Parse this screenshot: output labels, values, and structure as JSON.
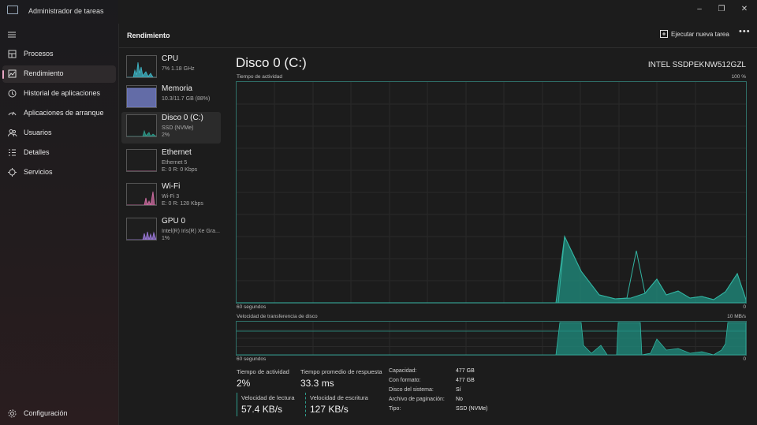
{
  "app": {
    "title": "Administrador de tareas"
  },
  "window": {
    "minimize": "–",
    "restore": "❐",
    "close": "✕"
  },
  "nav": {
    "menu_icon": "hamburger-icon",
    "items": [
      {
        "label": "Procesos",
        "icon": "processes-icon"
      },
      {
        "label": "Rendimiento",
        "icon": "performance-icon",
        "active": true
      },
      {
        "label": "Historial de aplicaciones",
        "icon": "history-icon"
      },
      {
        "label": "Aplicaciones de arranque",
        "icon": "startup-icon"
      },
      {
        "label": "Usuarios",
        "icon": "users-icon"
      },
      {
        "label": "Detalles",
        "icon": "details-icon"
      },
      {
        "label": "Servicios",
        "icon": "services-icon"
      }
    ],
    "settings": {
      "label": "Configuración",
      "icon": "gear-icon"
    }
  },
  "header": {
    "title": "Rendimiento",
    "run_task": "Ejecutar nueva tarea",
    "more": "•••"
  },
  "devices": [
    {
      "name": "CPU",
      "line1": "7% 1.18 GHz",
      "line2": "",
      "color": "#3fb7c7"
    },
    {
      "name": "Memoria",
      "line1": "10.3/11.7 GB (88%)",
      "line2": "",
      "color": "#7b87d6"
    },
    {
      "name": "Disco 0 (C:)",
      "line1": "SSD (NVMe)",
      "line2": "2%",
      "color": "#2e9c8c",
      "selected": true
    },
    {
      "name": "Ethernet",
      "line1": "Ethernet 5",
      "line2": "E: 0 R: 0 Kbps",
      "color": "#c56ea0"
    },
    {
      "name": "Wi-Fi",
      "line1": "Wi-Fi 3",
      "line2": "E: 0 R: 128 Kbps",
      "color": "#d06da3"
    },
    {
      "name": "GPU 0",
      "line1": "Intel(R) Iris(R) Xe Gra...",
      "line2": "1%",
      "color": "#9a78d8"
    }
  ],
  "detail": {
    "title": "Disco 0 (C:)",
    "model": "INTEL SSDPEKNW512GZL",
    "graph1": {
      "label": "Tiempo de actividad",
      "max": "100 %",
      "x_label": "60 segundos",
      "min": "0"
    },
    "graph2": {
      "label": "Velocidad de transferencia de disco",
      "max": "10 MB/s",
      "x_label": "60 segundos",
      "min": "0"
    },
    "stats": {
      "activity": {
        "label": "Tiempo de actividad",
        "value": "2%"
      },
      "response": {
        "label": "Tiempo promedio de respuesta",
        "value": "33.3 ms"
      },
      "read": {
        "label": "Velocidad de lectura",
        "value": "57.4 KB/s"
      },
      "write": {
        "label": "Velocidad de escritura",
        "value": "127 KB/s"
      }
    },
    "props": [
      {
        "label": "Capacidad:",
        "value": "477 GB"
      },
      {
        "label": "Con formato:",
        "value": "477 GB"
      },
      {
        "label": "Disco del sistema:",
        "value": "Sí"
      },
      {
        "label": "Archivo de paginación:",
        "value": "No"
      },
      {
        "label": "Tipo:",
        "value": "SSD (NVMe)"
      }
    ]
  },
  "colors": {
    "accent": "#2e9c8c",
    "nav_indicator": "#e9a6c4"
  }
}
